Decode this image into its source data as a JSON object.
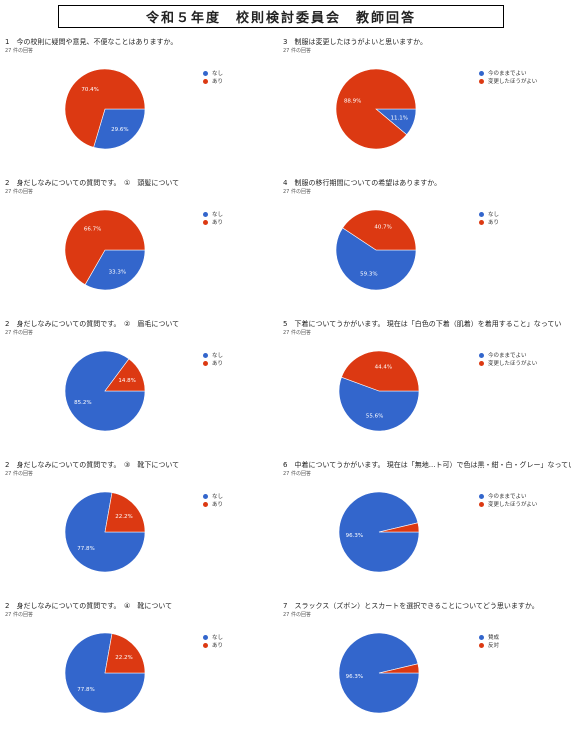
{
  "page": {
    "title": "令和５年度　校則検討委員会　教師回答"
  },
  "colors": {
    "blue": "#3366cc",
    "red": "#dc3912"
  },
  "chart_data": [
    {
      "id": "q1",
      "type": "pie",
      "title": "1　今の校則に疑問や意見、不便なことはありますか。",
      "count": "27 件の回答",
      "slices": [
        {
          "label": "なし",
          "value": 29.6,
          "label_text": "29.6%"
        },
        {
          "label": "あり",
          "value": 70.4,
          "label_text": "70.4%"
        }
      ]
    },
    {
      "id": "q3",
      "type": "pie",
      "title": "3　制服は変更したほうがよいと思いますか。",
      "count": "27 件の回答",
      "slices": [
        {
          "label": "今のままでよい",
          "value": 11.1,
          "label_text": "11.1%"
        },
        {
          "label": "変更したほうがよい",
          "value": 88.9,
          "label_text": "88.9%"
        }
      ]
    },
    {
      "id": "q2a",
      "type": "pie",
      "title": "2　身だしなみについての質問です。　①　頭髪について",
      "count": "27 件の回答",
      "slices": [
        {
          "label": "なし",
          "value": 33.3,
          "label_text": "33.3%"
        },
        {
          "label": "あり",
          "value": 66.7,
          "label_text": "66.7%"
        }
      ]
    },
    {
      "id": "q4",
      "type": "pie",
      "title": "4　制服の移行期間についての希望はありますか。",
      "count": "27 件の回答",
      "slices": [
        {
          "label": "なし",
          "value": 59.3,
          "label_text": "59.3%"
        },
        {
          "label": "あり",
          "value": 40.7,
          "label_text": "40.7%"
        }
      ]
    },
    {
      "id": "q2b",
      "type": "pie",
      "title": "2　身だしなみについての質問です。　②　眉毛について",
      "count": "27 件の回答",
      "slices": [
        {
          "label": "なし",
          "value": 85.2,
          "label_text": "85.2%"
        },
        {
          "label": "あり",
          "value": 14.8,
          "label_text": "14.8%"
        }
      ]
    },
    {
      "id": "q5",
      "type": "pie",
      "title": "5　下着についてうかがいます。 現在は「白色の下着（肌着）を着用すること」なってい",
      "count": "27 件の回答",
      "slices": [
        {
          "label": "今のままでよい",
          "value": 55.6,
          "label_text": "55.6%"
        },
        {
          "label": "変更したほうがよい",
          "value": 44.4,
          "label_text": "44.4%"
        }
      ]
    },
    {
      "id": "q2c",
      "type": "pie",
      "title": "2　身だしなみについての質問です。　③　靴下について",
      "count": "27 件の回答",
      "slices": [
        {
          "label": "なし",
          "value": 77.8,
          "label_text": "77.8%"
        },
        {
          "label": "あり",
          "value": 22.2,
          "label_text": "22.2%"
        }
      ]
    },
    {
      "id": "q6",
      "type": "pie",
      "title": "6　中着についてうかがいます。 現在は「無地...ト可）で色は黒・紺・白・グレー」なってい",
      "count": "27 件の回答",
      "slices": [
        {
          "label": "今のままでよい",
          "value": 96.3,
          "label_text": "96.3%"
        },
        {
          "label": "変更したほうがよい",
          "value": 3.7,
          "label_text": ""
        }
      ]
    },
    {
      "id": "q2d",
      "type": "pie",
      "title": "2　身だしなみについての質問です。　④　靴について",
      "count": "27 件の回答",
      "slices": [
        {
          "label": "なし",
          "value": 77.8,
          "label_text": "77.8%"
        },
        {
          "label": "あり",
          "value": 22.2,
          "label_text": "22.2%"
        }
      ]
    },
    {
      "id": "q7",
      "type": "pie",
      "title": "7　スラックス（ズボン）とスカートを選択できることについてどう思いますか。",
      "count": "27 件の回答",
      "slices": [
        {
          "label": "賛成",
          "value": 96.3,
          "label_text": "96.3%"
        },
        {
          "label": "反対",
          "value": 3.7,
          "label_text": ""
        }
      ]
    }
  ]
}
